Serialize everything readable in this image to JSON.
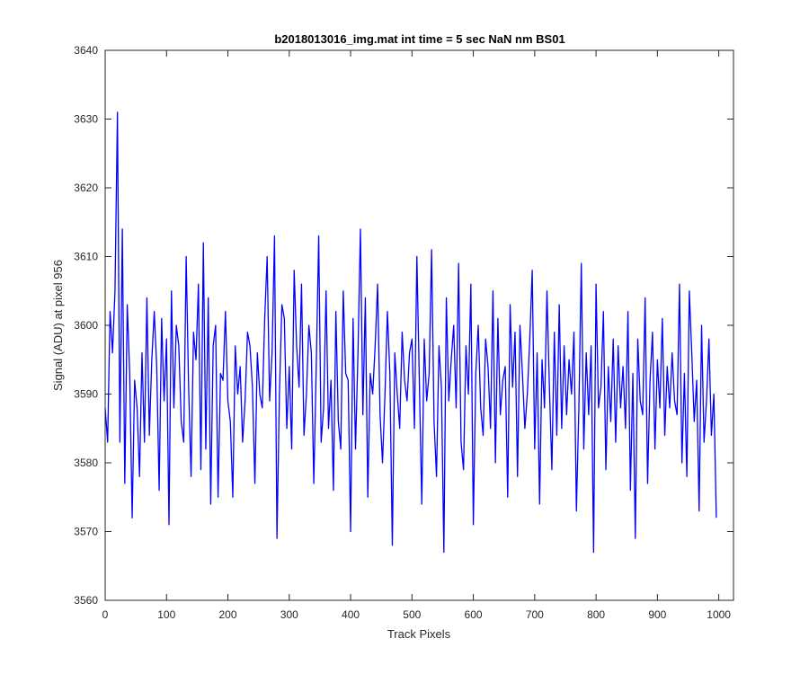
{
  "chart_data": {
    "type": "line",
    "title": "b2018013016_img.mat int time = 5 sec  NaN nm BS01",
    "xlabel": "Track Pixels",
    "ylabel": "Signal (ADU) at pixel 956",
    "xlim": [
      0,
      1024
    ],
    "ylim": [
      3560,
      3640
    ],
    "xticks": [
      0,
      100,
      200,
      300,
      400,
      500,
      600,
      700,
      800,
      900,
      1000
    ],
    "yticks": [
      3560,
      3570,
      3580,
      3590,
      3600,
      3610,
      3620,
      3630,
      3640
    ],
    "grid": false,
    "line_color": "#0000ff",
    "series": [
      {
        "values_step": 4,
        "values": [
          3588,
          3583,
          3602,
          3596,
          3605,
          3631,
          3583,
          3614,
          3577,
          3603,
          3593,
          3572,
          3592,
          3588,
          3578,
          3596,
          3583,
          3604,
          3584,
          3595,
          3602,
          3594,
          3576,
          3601,
          3589,
          3598,
          3571,
          3605,
          3588,
          3600,
          3597,
          3586,
          3583,
          3610,
          3591,
          3578,
          3599,
          3595,
          3606,
          3579,
          3612,
          3582,
          3604,
          3574,
          3597,
          3600,
          3575,
          3593,
          3592,
          3602,
          3589,
          3586,
          3575,
          3597,
          3590,
          3594,
          3583,
          3589,
          3599,
          3597,
          3591,
          3577,
          3596,
          3590,
          3588,
          3601,
          3610,
          3589,
          3596,
          3613,
          3569,
          3590,
          3603,
          3601,
          3585,
          3594,
          3582,
          3608,
          3597,
          3591,
          3606,
          3584,
          3590,
          3600,
          3596,
          3577,
          3594,
          3613,
          3583,
          3588,
          3605,
          3585,
          3592,
          3576,
          3602,
          3586,
          3582,
          3605,
          3593,
          3592,
          3570,
          3601,
          3582,
          3596,
          3614,
          3587,
          3604,
          3575,
          3593,
          3590,
          3597,
          3606,
          3587,
          3580,
          3590,
          3602,
          3593,
          3568,
          3596,
          3590,
          3585,
          3599,
          3592,
          3589,
          3596,
          3598,
          3585,
          3610,
          3592,
          3574,
          3598,
          3589,
          3593,
          3611,
          3586,
          3578,
          3597,
          3591,
          3567,
          3604,
          3589,
          3595,
          3600,
          3588,
          3609,
          3583,
          3579,
          3597,
          3590,
          3606,
          3571,
          3593,
          3600,
          3588,
          3584,
          3598,
          3594,
          3585,
          3605,
          3580,
          3601,
          3587,
          3592,
          3594,
          3575,
          3603,
          3591,
          3599,
          3578,
          3600,
          3593,
          3585,
          3590,
          3598,
          3608,
          3582,
          3596,
          3574,
          3595,
          3588,
          3605,
          3591,
          3579,
          3599,
          3584,
          3603,
          3585,
          3597,
          3587,
          3595,
          3590,
          3599,
          3573,
          3588,
          3609,
          3582,
          3596,
          3587,
          3597,
          3567,
          3606,
          3588,
          3591,
          3602,
          3579,
          3594,
          3586,
          3598,
          3583,
          3597,
          3588,
          3594,
          3585,
          3602,
          3576,
          3593,
          3569,
          3598,
          3589,
          3587,
          3604,
          3577,
          3592,
          3599,
          3582,
          3595,
          3588,
          3601,
          3584,
          3594,
          3588,
          3596,
          3589,
          3587,
          3606,
          3580,
          3593,
          3578,
          3605,
          3596,
          3586,
          3592,
          3573,
          3600,
          3583,
          3589,
          3598,
          3584,
          3590,
          3572
        ],
        "name": ""
      }
    ]
  }
}
